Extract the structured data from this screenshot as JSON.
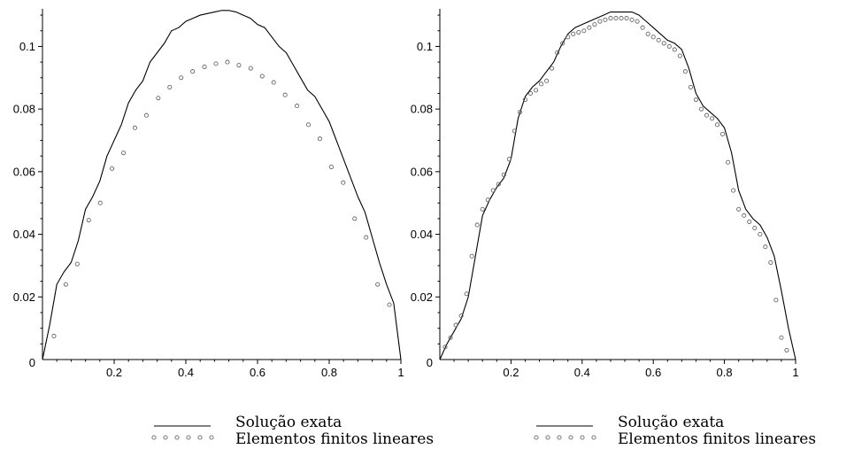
{
  "chart_data": [
    {
      "type": "line",
      "title": "",
      "xlabel": "",
      "ylabel": "",
      "xlim": [
        0,
        1
      ],
      "ylim": [
        0,
        0.112
      ],
      "xticks": [
        0.2,
        0.4,
        0.6,
        0.8,
        1
      ],
      "xtick_labels": [
        "0.2",
        "0.4",
        "0.6",
        "0.8",
        "1"
      ],
      "yticks": [
        0.02,
        0.04,
        0.06,
        0.08,
        0.1
      ],
      "ytick_labels": [
        "0.02",
        "0.04",
        "0.06",
        "0.08",
        "0.1"
      ],
      "origin_label": "0",
      "grid": false,
      "legend_position": "bottom",
      "series": [
        {
          "name": "Solução exata",
          "style": "solid-line",
          "color": "#000000",
          "x": [
            0,
            0.02,
            0.04,
            0.06,
            0.08,
            0.1,
            0.12,
            0.14,
            0.16,
            0.18,
            0.2,
            0.22,
            0.24,
            0.26,
            0.28,
            0.3,
            0.32,
            0.34,
            0.36,
            0.38,
            0.4,
            0.42,
            0.44,
            0.46,
            0.48,
            0.5,
            0.52,
            0.54,
            0.56,
            0.58,
            0.6,
            0.62,
            0.64,
            0.66,
            0.68,
            0.7,
            0.72,
            0.74,
            0.76,
            0.78,
            0.8,
            0.82,
            0.84,
            0.86,
            0.88,
            0.9,
            0.92,
            0.94,
            0.96,
            0.98,
            1
          ],
          "y": [
            0,
            0.011,
            0.024,
            0.028,
            0.031,
            0.038,
            0.048,
            0.052,
            0.057,
            0.065,
            0.07,
            0.075,
            0.082,
            0.086,
            0.089,
            0.095,
            0.098,
            0.101,
            0.105,
            0.106,
            0.108,
            0.109,
            0.11,
            0.1105,
            0.111,
            0.1115,
            0.1115,
            0.111,
            0.11,
            0.109,
            0.107,
            0.106,
            0.103,
            0.1,
            0.098,
            0.094,
            0.09,
            0.086,
            0.084,
            0.08,
            0.076,
            0.07,
            0.064,
            0.058,
            0.052,
            0.047,
            0.039,
            0.031,
            0.024,
            0.018,
            0
          ]
        },
        {
          "name": "Elementos finitos lineares",
          "style": "circle-markers",
          "color": "#666666",
          "x": [
            0.032,
            0.065,
            0.097,
            0.129,
            0.161,
            0.194,
            0.226,
            0.258,
            0.29,
            0.323,
            0.355,
            0.387,
            0.419,
            0.452,
            0.484,
            0.516,
            0.548,
            0.581,
            0.613,
            0.645,
            0.677,
            0.71,
            0.742,
            0.774,
            0.806,
            0.839,
            0.871,
            0.903,
            0.935,
            0.968
          ],
          "y": [
            0.0075,
            0.024,
            0.0305,
            0.0445,
            0.05,
            0.061,
            0.066,
            0.074,
            0.078,
            0.0835,
            0.087,
            0.09,
            0.092,
            0.0935,
            0.0945,
            0.095,
            0.094,
            0.093,
            0.0905,
            0.0885,
            0.0845,
            0.081,
            0.075,
            0.0705,
            0.0615,
            0.0565,
            0.045,
            0.039,
            0.024,
            0.0175
          ]
        }
      ]
    },
    {
      "type": "line",
      "title": "",
      "xlabel": "",
      "ylabel": "",
      "xlim": [
        0,
        1
      ],
      "ylim": [
        0,
        0.112
      ],
      "xticks": [
        0.2,
        0.4,
        0.6,
        0.8,
        1
      ],
      "xtick_labels": [
        "0.2",
        "0.4",
        "0.6",
        "0.8",
        "1"
      ],
      "yticks": [
        0.02,
        0.04,
        0.06,
        0.08,
        0.1
      ],
      "ytick_labels": [
        "0.02",
        "0.04",
        "0.06",
        "0.08",
        "0.1"
      ],
      "origin_label": "0",
      "grid": false,
      "legend_position": "bottom",
      "series": [
        {
          "name": "Solução exata",
          "style": "solid-line",
          "color": "#000000",
          "x": [
            0,
            0.02,
            0.04,
            0.06,
            0.08,
            0.1,
            0.12,
            0.14,
            0.16,
            0.18,
            0.2,
            0.22,
            0.24,
            0.26,
            0.28,
            0.3,
            0.32,
            0.34,
            0.36,
            0.38,
            0.4,
            0.42,
            0.44,
            0.46,
            0.48,
            0.5,
            0.52,
            0.54,
            0.56,
            0.58,
            0.6,
            0.62,
            0.64,
            0.66,
            0.68,
            0.7,
            0.72,
            0.74,
            0.76,
            0.78,
            0.8,
            0.82,
            0.84,
            0.86,
            0.88,
            0.9,
            0.92,
            0.94,
            0.96,
            0.98,
            1
          ],
          "y": [
            0,
            0.005,
            0.009,
            0.013,
            0.02,
            0.033,
            0.046,
            0.051,
            0.055,
            0.058,
            0.064,
            0.077,
            0.084,
            0.087,
            0.089,
            0.092,
            0.095,
            0.1,
            0.104,
            0.106,
            0.107,
            0.108,
            0.109,
            0.11,
            0.111,
            0.111,
            0.111,
            0.111,
            0.11,
            0.108,
            0.106,
            0.104,
            0.102,
            0.101,
            0.099,
            0.093,
            0.085,
            0.081,
            0.079,
            0.077,
            0.074,
            0.066,
            0.054,
            0.048,
            0.045,
            0.043,
            0.039,
            0.033,
            0.022,
            0.01,
            0
          ]
        },
        {
          "name": "Elementos finitos lineares",
          "style": "circle-markers",
          "color": "#666666",
          "x": [
            0.015,
            0.03,
            0.045,
            0.06,
            0.075,
            0.09,
            0.105,
            0.12,
            0.135,
            0.15,
            0.165,
            0.18,
            0.195,
            0.21,
            0.225,
            0.24,
            0.255,
            0.27,
            0.285,
            0.3,
            0.315,
            0.33,
            0.345,
            0.36,
            0.375,
            0.39,
            0.405,
            0.42,
            0.435,
            0.45,
            0.465,
            0.48,
            0.495,
            0.51,
            0.525,
            0.54,
            0.555,
            0.57,
            0.585,
            0.6,
            0.615,
            0.63,
            0.645,
            0.66,
            0.675,
            0.69,
            0.705,
            0.72,
            0.735,
            0.75,
            0.765,
            0.78,
            0.795,
            0.81,
            0.825,
            0.84,
            0.855,
            0.87,
            0.885,
            0.9,
            0.915,
            0.93,
            0.945,
            0.96,
            0.975
          ],
          "y": [
            0.004,
            0.007,
            0.011,
            0.014,
            0.021,
            0.033,
            0.043,
            0.048,
            0.051,
            0.054,
            0.056,
            0.059,
            0.064,
            0.073,
            0.079,
            0.083,
            0.085,
            0.086,
            0.088,
            0.089,
            0.093,
            0.098,
            0.101,
            0.103,
            0.104,
            0.1045,
            0.105,
            0.106,
            0.107,
            0.108,
            0.1085,
            0.109,
            0.109,
            0.109,
            0.109,
            0.1085,
            0.108,
            0.106,
            0.104,
            0.103,
            0.102,
            0.101,
            0.1,
            0.099,
            0.097,
            0.092,
            0.087,
            0.083,
            0.08,
            0.078,
            0.077,
            0.075,
            0.072,
            0.063,
            0.054,
            0.048,
            0.046,
            0.044,
            0.042,
            0.04,
            0.036,
            0.031,
            0.019,
            0.007,
            0.003
          ]
        }
      ]
    }
  ]
}
